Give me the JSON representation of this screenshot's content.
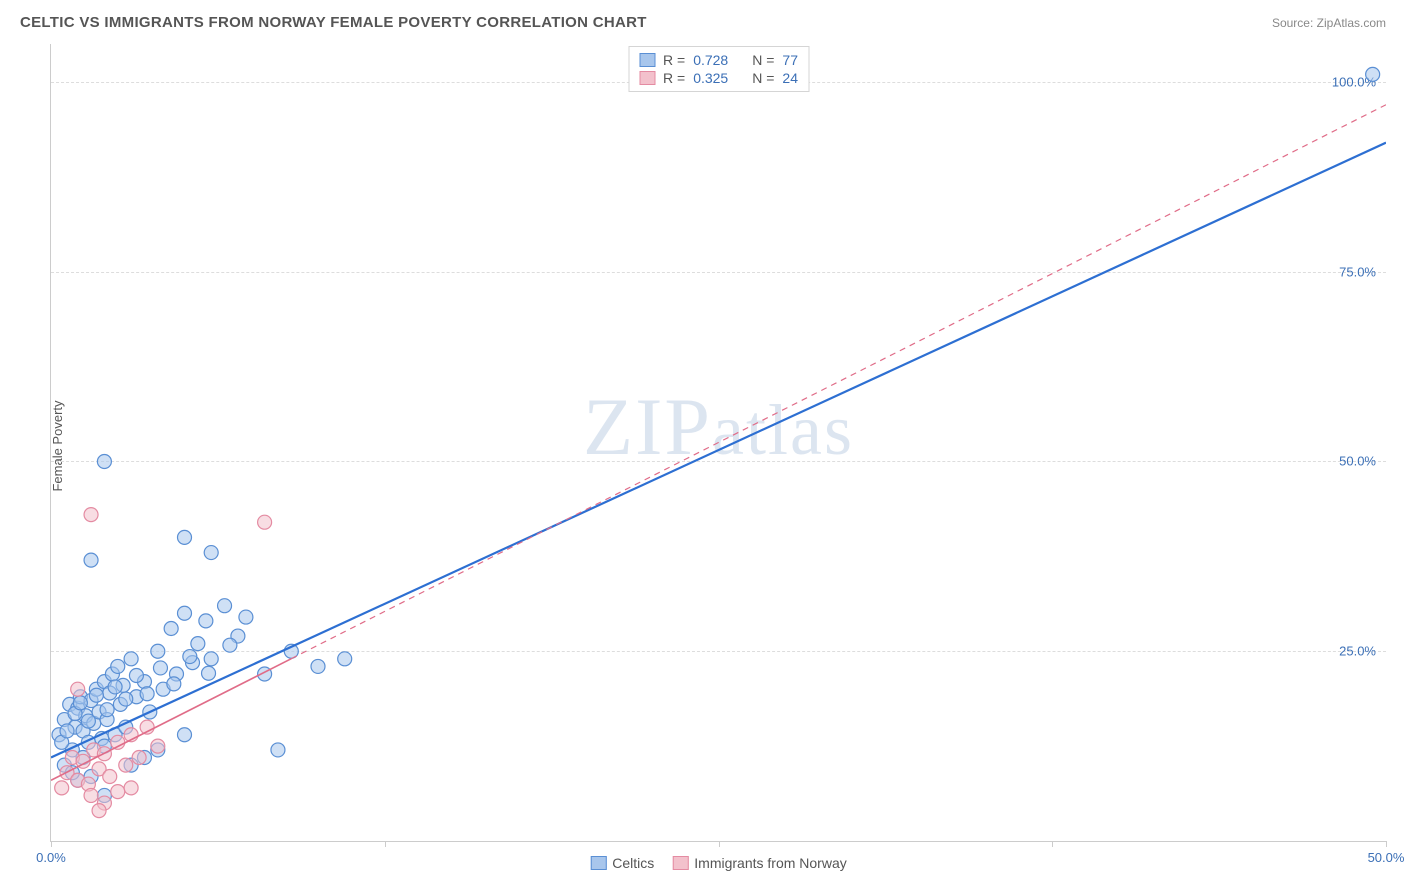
{
  "header": {
    "title": "CELTIC VS IMMIGRANTS FROM NORWAY FEMALE POVERTY CORRELATION CHART",
    "source": "Source: ZipAtlas.com"
  },
  "chart": {
    "type": "scatter",
    "ylabel": "Female Poverty",
    "xlim": [
      0,
      50
    ],
    "ylim": [
      0,
      105
    ],
    "xticks": [
      0,
      12.5,
      25,
      37.5,
      50
    ],
    "xtick_labels": [
      "0.0%",
      "",
      "",
      "",
      "50.0%"
    ],
    "yticks": [
      25,
      50,
      75,
      100
    ],
    "ytick_labels": [
      "25.0%",
      "50.0%",
      "75.0%",
      "100.0%"
    ],
    "background_color": "#ffffff",
    "grid_color": "#dddddd",
    "axis_color": "#cccccc",
    "marker_radius": 7,
    "marker_opacity": 0.55,
    "series": [
      {
        "name": "Celtics",
        "color_fill": "#a8c6ec",
        "color_stroke": "#5a8fd4",
        "R": 0.728,
        "N": 77,
        "trend": {
          "x1": 0,
          "y1": 11,
          "x2": 50,
          "y2": 92,
          "solid_until_x": 50,
          "width": 2.2,
          "color": "#2d6fd2"
        },
        "points": [
          [
            0.3,
            14
          ],
          [
            0.5,
            16
          ],
          [
            0.7,
            18
          ],
          [
            0.8,
            12
          ],
          [
            0.9,
            15
          ],
          [
            1.0,
            17.5
          ],
          [
            1.1,
            19
          ],
          [
            1.2,
            14.5
          ],
          [
            1.3,
            16.5
          ],
          [
            1.4,
            13
          ],
          [
            1.5,
            18.5
          ],
          [
            1.6,
            15.5
          ],
          [
            1.7,
            20
          ],
          [
            1.8,
            17
          ],
          [
            1.9,
            13.5
          ],
          [
            2.0,
            21
          ],
          [
            2.1,
            16
          ],
          [
            2.2,
            19.5
          ],
          [
            2.3,
            22
          ],
          [
            2.4,
            14
          ],
          [
            2.5,
            23
          ],
          [
            2.6,
            18
          ],
          [
            2.7,
            20.5
          ],
          [
            2.8,
            15
          ],
          [
            3.0,
            24
          ],
          [
            3.2,
            19
          ],
          [
            1.5,
            37
          ],
          [
            3.5,
            21
          ],
          [
            3.7,
            17
          ],
          [
            2.0,
            50
          ],
          [
            4.0,
            25
          ],
          [
            4.2,
            20
          ],
          [
            4.5,
            28
          ],
          [
            4.7,
            22
          ],
          [
            5.0,
            30
          ],
          [
            5.3,
            23.5
          ],
          [
            5.5,
            26
          ],
          [
            5.8,
            29
          ],
          [
            6.0,
            24
          ],
          [
            5.0,
            40
          ],
          [
            6.5,
            31
          ],
          [
            7.0,
            27
          ],
          [
            7.3,
            29.5
          ],
          [
            3.0,
            10
          ],
          [
            1.0,
            8
          ],
          [
            2.0,
            6
          ],
          [
            4.0,
            12
          ],
          [
            5.0,
            14
          ],
          [
            3.5,
            11
          ],
          [
            6.0,
            38
          ],
          [
            8.0,
            22
          ],
          [
            8.5,
            12
          ],
          [
            9.0,
            25
          ],
          [
            10.0,
            23
          ],
          [
            11.0,
            24
          ],
          [
            0.5,
            10
          ],
          [
            0.8,
            9
          ],
          [
            1.2,
            11
          ],
          [
            1.5,
            8.5
          ],
          [
            2.0,
            12.5
          ],
          [
            0.4,
            13
          ],
          [
            0.6,
            14.5
          ],
          [
            0.9,
            16.8
          ],
          [
            1.1,
            18.2
          ],
          [
            1.4,
            15.8
          ],
          [
            1.7,
            19.2
          ],
          [
            2.1,
            17.3
          ],
          [
            2.4,
            20.3
          ],
          [
            2.8,
            18.7
          ],
          [
            3.2,
            21.8
          ],
          [
            3.6,
            19.4
          ],
          [
            4.1,
            22.8
          ],
          [
            4.6,
            20.7
          ],
          [
            5.2,
            24.3
          ],
          [
            5.9,
            22.1
          ],
          [
            6.7,
            25.8
          ],
          [
            49.5,
            101
          ]
        ]
      },
      {
        "name": "Immigrants from Norway",
        "color_fill": "#f3c1cc",
        "color_stroke": "#e48ba2",
        "R": 0.325,
        "N": 24,
        "trend": {
          "x1": 0,
          "y1": 8,
          "x2": 50,
          "y2": 97,
          "solid_until_x": 9,
          "width": 1.6,
          "color": "#e06c88"
        },
        "points": [
          [
            0.4,
            7
          ],
          [
            0.6,
            9
          ],
          [
            0.8,
            11
          ],
          [
            1.0,
            8
          ],
          [
            1.2,
            10.5
          ],
          [
            1.4,
            7.5
          ],
          [
            1.6,
            12
          ],
          [
            1.8,
            9.5
          ],
          [
            2.0,
            11.5
          ],
          [
            2.2,
            8.5
          ],
          [
            2.5,
            13
          ],
          [
            2.8,
            10
          ],
          [
            3.0,
            14
          ],
          [
            3.3,
            11
          ],
          [
            3.6,
            15
          ],
          [
            4.0,
            12.5
          ],
          [
            1.5,
            6
          ],
          [
            2.0,
            5
          ],
          [
            3.0,
            7
          ],
          [
            1.0,
            20
          ],
          [
            1.5,
            43
          ],
          [
            8.0,
            42
          ],
          [
            1.8,
            4
          ],
          [
            2.5,
            6.5
          ]
        ]
      }
    ],
    "watermark": "ZIPatlas",
    "legend_bottom": [
      {
        "label": "Celtics",
        "fill": "#a8c6ec",
        "stroke": "#5a8fd4"
      },
      {
        "label": "Immigrants from Norway",
        "fill": "#f3c1cc",
        "stroke": "#e48ba2"
      }
    ]
  }
}
